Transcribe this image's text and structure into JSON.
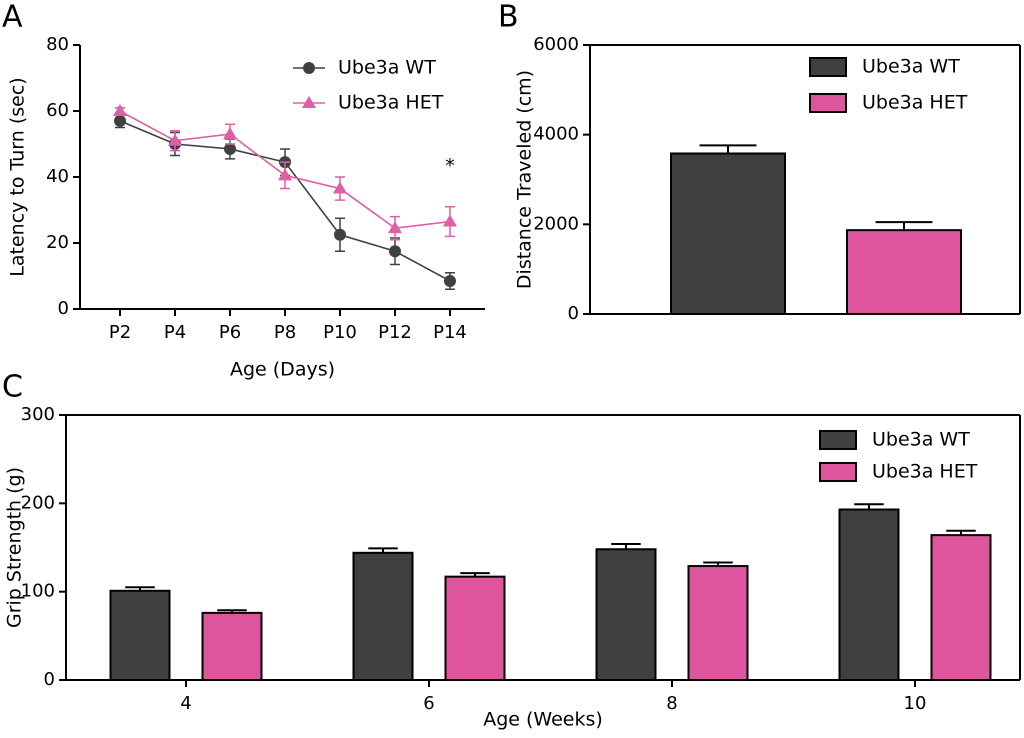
{
  "chart_data": [
    {
      "type": "line",
      "panel_label": "A",
      "xlabel": "Age (Days)",
      "ylabel": "Latency to Turn (sec)",
      "annotation": "*",
      "categories": [
        "P2",
        "P4",
        "P6",
        "P8",
        "P10",
        "P12",
        "P14"
      ],
      "series": [
        {
          "name": "Ube3a WT",
          "color": "#404040",
          "marker": "circle",
          "values": [
            57,
            50,
            48.5,
            44.5,
            22.5,
            17.5,
            8.5
          ],
          "errors": [
            2,
            3.5,
            3,
            4,
            5,
            4,
            2.5
          ]
        },
        {
          "name": "Ube3a HET",
          "color": "#de5fa8",
          "marker": "triangle",
          "values": [
            60,
            51,
            53,
            40.5,
            36.5,
            24.5,
            26.5
          ],
          "errors": [
            1,
            3,
            3,
            4,
            3.5,
            3.5,
            4.5
          ]
        }
      ],
      "ylim": [
        0,
        80
      ],
      "yticks": [
        0,
        20,
        40,
        60,
        80
      ],
      "legend": "upper right"
    },
    {
      "type": "bar",
      "panel_label": "B",
      "ylabel": "Distance Traveled (cm)",
      "categories": [
        null
      ],
      "series": [
        {
          "name": "Ube3a WT",
          "color": "#404040",
          "values": [
            3580
          ],
          "errors": [
            180
          ]
        },
        {
          "name": "Ube3a HET",
          "color": "#de559e",
          "values": [
            1870
          ],
          "errors": [
            180
          ]
        }
      ],
      "ylim": [
        0,
        6000
      ],
      "yticks": [
        0,
        2000,
        4000,
        6000
      ],
      "legend": "upper right"
    },
    {
      "type": "bar",
      "panel_label": "C",
      "xlabel": "Age (Weeks)",
      "ylabel": "Grip Strength (g)",
      "categories": [
        "4",
        "6",
        "8",
        "10"
      ],
      "series": [
        {
          "name": "Ube3a WT",
          "color": "#404040",
          "values": [
            101,
            144,
            148,
            193
          ],
          "errors": [
            4,
            5,
            6,
            6
          ]
        },
        {
          "name": "Ube3a HET",
          "color": "#de559e",
          "values": [
            76,
            117,
            129,
            164
          ],
          "errors": [
            3,
            4,
            4,
            5
          ]
        }
      ],
      "ylim": [
        0,
        300
      ],
      "yticks": [
        0,
        100,
        200,
        300
      ],
      "legend": "upper right"
    }
  ]
}
